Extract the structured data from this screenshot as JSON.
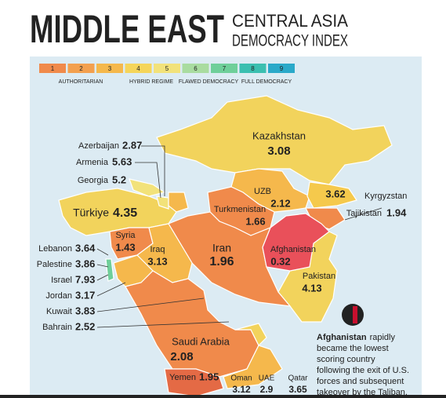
{
  "header": {
    "title": "MIDDLE EAST",
    "subtitle_top": "CENTRAL ASIA",
    "subtitle_bottom": "DEMOCRACY INDEX"
  },
  "legend": {
    "levels": [
      {
        "value": 1,
        "color": "#f08a4b"
      },
      {
        "value": 2,
        "color": "#f3a04f"
      },
      {
        "value": 3,
        "color": "#f5b84c"
      },
      {
        "value": 4,
        "color": "#f5d55a"
      },
      {
        "value": 5,
        "color": "#f2e27a"
      },
      {
        "value": 6,
        "color": "#a9dca0"
      },
      {
        "value": 7,
        "color": "#6fcf9a"
      },
      {
        "value": 8,
        "color": "#3bbfb0"
      },
      {
        "value": 9,
        "color": "#2aa9c9"
      }
    ],
    "groups": [
      "AUTHORITARIAN",
      "HYBRID REGIME",
      "FLAWED DEMOCRACY",
      "FULL DEMOCRACY"
    ]
  },
  "countries": [
    {
      "name": "Kazakhstan",
      "score": 3.08
    },
    {
      "name": "Azerbaijan",
      "score": 2.87
    },
    {
      "name": "Armenia",
      "score": 5.63
    },
    {
      "name": "Georgia",
      "score": 5.2
    },
    {
      "name": "Türkiye",
      "score": 4.35
    },
    {
      "name": "UZB",
      "score": 2.12
    },
    {
      "name": "Turkmenistan",
      "score": 1.66
    },
    {
      "name": "Kyrgyzstan",
      "score": 3.62
    },
    {
      "name": "Tajikistan",
      "score": 1.94
    },
    {
      "name": "Syria",
      "score": 1.43
    },
    {
      "name": "Iraq",
      "score": 3.13
    },
    {
      "name": "Iran",
      "score": 1.96
    },
    {
      "name": "Afghanistan",
      "score": 0.32
    },
    {
      "name": "Pakistan",
      "score": 4.13
    },
    {
      "name": "Lebanon",
      "score": 3.64
    },
    {
      "name": "Palestine",
      "score": 3.86
    },
    {
      "name": "Israel",
      "score": 7.93
    },
    {
      "name": "Jordan",
      "score": 3.17
    },
    {
      "name": "Kuwait",
      "score": 3.83
    },
    {
      "name": "Bahrain",
      "score": 2.52
    },
    {
      "name": "Saudi Arabia",
      "score": 2.08
    },
    {
      "name": "Yemen",
      "score": 1.95
    },
    {
      "name": "Oman",
      "score": 3.12
    },
    {
      "name": "UAE",
      "score": 2.9
    },
    {
      "name": "Qatar",
      "score": 3.65
    }
  ],
  "note": {
    "highlight": "Afghanistan",
    "lines": [
      "rapidly",
      "became the lowest",
      "scoring country",
      "following the exit of U.S.",
      "forces and subsequent",
      "takeover by the Taliban."
    ]
  }
}
